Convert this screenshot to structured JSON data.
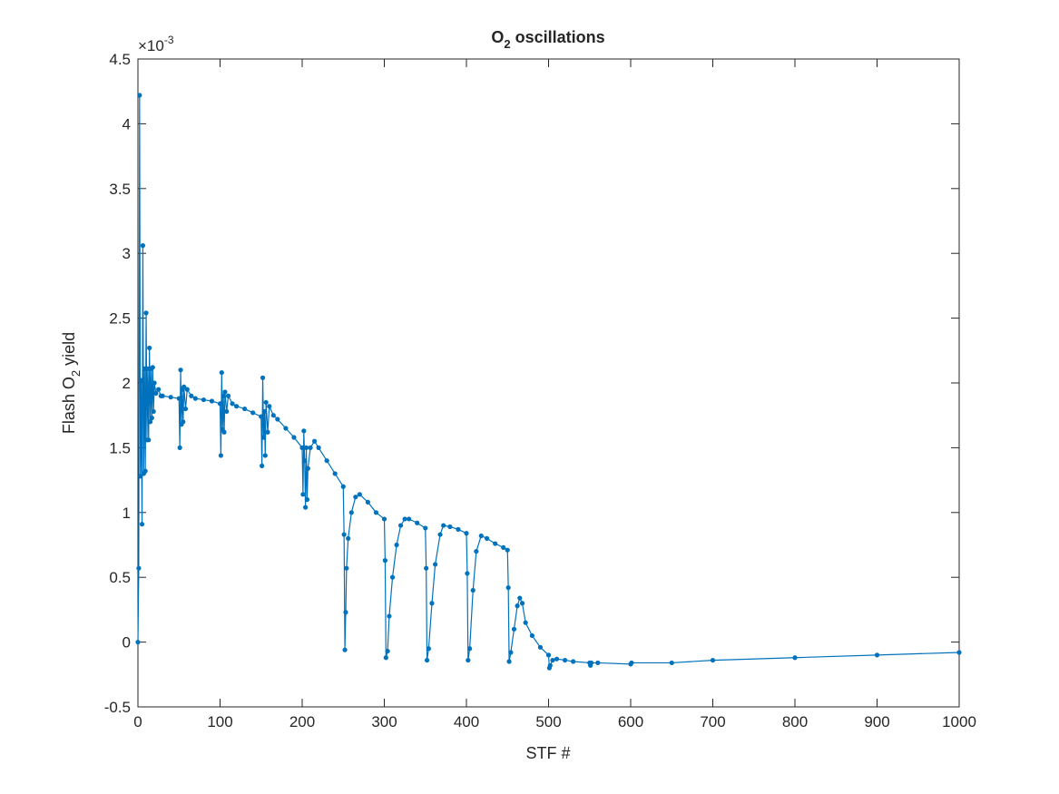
{
  "chart_data": {
    "type": "line",
    "title": [
      "O",
      "2",
      " oscillations"
    ],
    "x_label": "STF #",
    "y_label": [
      "Flash O",
      "2",
      " yield"
    ],
    "y_exponent": [
      "×10",
      "-3"
    ],
    "xlim": [
      0,
      1000
    ],
    "xticks": [
      0,
      100,
      200,
      300,
      400,
      500,
      600,
      700,
      800,
      900,
      1000
    ],
    "ylim": [
      -0.5,
      4.5
    ],
    "yticks": [
      -0.5,
      0,
      0.5,
      1,
      1.5,
      2,
      2.5,
      3,
      3.5,
      4,
      4.5
    ],
    "series": [
      {
        "color": "#0072bd",
        "x": [
          0,
          1,
          2,
          3,
          4,
          5,
          6,
          7,
          8,
          9,
          10,
          11,
          12,
          13,
          14,
          15,
          16,
          17,
          18,
          19,
          20,
          22,
          25,
          28,
          30,
          40,
          50,
          51,
          52,
          53,
          54,
          55,
          56,
          58,
          60,
          65,
          70,
          80,
          90,
          100,
          101,
          102,
          103,
          104,
          105,
          106,
          108,
          110,
          115,
          120,
          130,
          140,
          150,
          151,
          152,
          153,
          154,
          155,
          156,
          158,
          160,
          165,
          170,
          180,
          190,
          200,
          201,
          202,
          203,
          204,
          205,
          206,
          207,
          210,
          215,
          220,
          230,
          240,
          250,
          251,
          252,
          253,
          254,
          256,
          260,
          265,
          270,
          280,
          290,
          300,
          301,
          302,
          304,
          306,
          310,
          315,
          320,
          325,
          330,
          340,
          350,
          351,
          352,
          354,
          358,
          362,
          368,
          372,
          380,
          390,
          400,
          401,
          402,
          404,
          408,
          412,
          418,
          425,
          435,
          445,
          450,
          451,
          452,
          454,
          458,
          462,
          465,
          468,
          472,
          480,
          490,
          500,
          501,
          502,
          505,
          510,
          520,
          530,
          550,
          551,
          552,
          560,
          600,
          601,
          650,
          700,
          800,
          900,
          1000
        ],
        "values": [
          0,
          0.57,
          4.22,
          1.28,
          2.02,
          0.91,
          3.06,
          1.3,
          2.11,
          1.32,
          2.54,
          1.56,
          2.11,
          1.56,
          2.27,
          1.7,
          2.11,
          1.73,
          2.12,
          1.78,
          2,
          1.92,
          1.95,
          1.9,
          1.9,
          1.89,
          1.88,
          1.5,
          2.1,
          1.68,
          1.95,
          1.7,
          1.97,
          1.8,
          1.95,
          1.9,
          1.88,
          1.87,
          1.86,
          1.84,
          1.44,
          2.08,
          1.64,
          1.9,
          1.62,
          1.93,
          1.78,
          1.9,
          1.84,
          1.82,
          1.8,
          1.77,
          1.74,
          1.36,
          2.04,
          1.58,
          1.78,
          1.44,
          1.85,
          1.62,
          1.82,
          1.75,
          1.72,
          1.65,
          1.58,
          1.5,
          1.14,
          1.63,
          1.4,
          1.04,
          1.5,
          1.1,
          1.34,
          1.5,
          1.55,
          1.5,
          1.4,
          1.3,
          1.2,
          0.83,
          -0.06,
          0.23,
          0.57,
          0.8,
          1,
          1.12,
          1.14,
          1.08,
          1,
          0.95,
          0.63,
          -0.12,
          -0.07,
          0.2,
          0.5,
          0.75,
          0.9,
          0.95,
          0.95,
          0.92,
          0.88,
          0.57,
          -0.14,
          -0.05,
          0.3,
          0.6,
          0.83,
          0.9,
          0.89,
          0.87,
          0.84,
          0.53,
          -0.14,
          -0.05,
          0.4,
          0.7,
          0.82,
          0.8,
          0.76,
          0.73,
          0.71,
          0.42,
          -0.15,
          -0.08,
          0.1,
          0.28,
          0.34,
          0.3,
          0.15,
          0.05,
          -0.04,
          -0.1,
          -0.2,
          -0.18,
          -0.14,
          -0.13,
          -0.14,
          -0.15,
          -0.16,
          -0.18,
          -0.16,
          -0.16,
          -0.17,
          -0.16,
          -0.16,
          -0.14,
          -0.12,
          -0.1,
          -0.08
        ]
      }
    ]
  }
}
